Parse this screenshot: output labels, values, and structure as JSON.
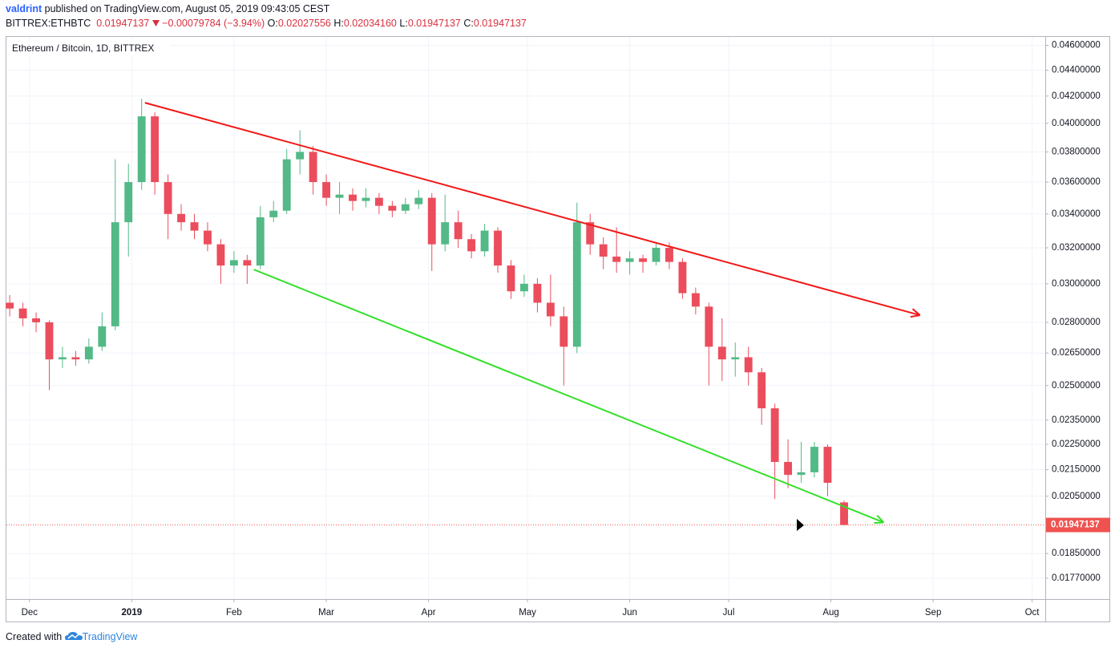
{
  "header": {
    "author": "valdrint",
    "published": "published on TradingView.com, August 05, 2019 09:43:05 CEST",
    "symbol": "BITTREX:ETHBTC",
    "last": "0.01947137",
    "change": "−0.00079784 (−3.94%)",
    "o_label": "O:",
    "o": "0.02027556",
    "h_label": "H:",
    "h": "0.02034160",
    "l_label": "L:",
    "l": "0.01947137",
    "c_label": "C:",
    "c": "0.01947137"
  },
  "footer": {
    "created": "Created with",
    "brand": "TradingView"
  },
  "chart_data": {
    "type": "candlestick",
    "title": "Ethereum / Bitcoin, 1D, BITTREX",
    "log_scale": true,
    "grid": true,
    "up_color": "#53b987",
    "down_color": "#eb4d5c",
    "xlim": [
      "2018-11-24",
      "2019-10-05"
    ],
    "xticks": [
      {
        "value": "2018-12-01",
        "label": "Dec"
      },
      {
        "value": "2019-01-01",
        "label": "2019"
      },
      {
        "value": "2019-02-01",
        "label": "Feb"
      },
      {
        "value": "2019-03-01",
        "label": "Mar"
      },
      {
        "value": "2019-04-01",
        "label": "Apr"
      },
      {
        "value": "2019-05-01",
        "label": "May"
      },
      {
        "value": "2019-06-01",
        "label": "Jun"
      },
      {
        "value": "2019-07-01",
        "label": "Jul"
      },
      {
        "value": "2019-08-01",
        "label": "Aug"
      },
      {
        "value": "2019-09-01",
        "label": "Sep"
      },
      {
        "value": "2019-10-01",
        "label": "Oct"
      }
    ],
    "ylim": [
      0.01705,
      0.0467
    ],
    "yticks": [
      {
        "value": 0.046,
        "label": "0.04600000"
      },
      {
        "value": 0.044,
        "label": "0.04400000"
      },
      {
        "value": 0.042,
        "label": "0.04200000"
      },
      {
        "value": 0.04,
        "label": "0.04000000"
      },
      {
        "value": 0.038,
        "label": "0.03800000"
      },
      {
        "value": 0.036,
        "label": "0.03600000"
      },
      {
        "value": 0.034,
        "label": "0.03400000"
      },
      {
        "value": 0.032,
        "label": "0.03200000"
      },
      {
        "value": 0.03,
        "label": "0.03000000"
      },
      {
        "value": 0.028,
        "label": "0.02800000"
      },
      {
        "value": 0.0265,
        "label": "0.02650000"
      },
      {
        "value": 0.025,
        "label": "0.02500000"
      },
      {
        "value": 0.0235,
        "label": "0.02350000"
      },
      {
        "value": 0.0225,
        "label": "0.02250000"
      },
      {
        "value": 0.0215,
        "label": "0.02150000"
      },
      {
        "value": 0.0205,
        "label": "0.02050000"
      },
      {
        "value": 0.0185,
        "label": "0.01850000"
      },
      {
        "value": 0.0177,
        "label": "0.01770000"
      }
    ],
    "price_line": {
      "value": 0.01947137,
      "label": "0.01947137",
      "color": "#ef5350"
    },
    "candles": {
      "x": [
        "2018-11-25",
        "2018-11-29",
        "2018-12-03",
        "2018-12-07",
        "2018-12-11",
        "2018-12-15",
        "2018-12-19",
        "2018-12-23",
        "2018-12-27",
        "2018-12-31",
        "2019-01-04",
        "2019-01-08",
        "2019-01-12",
        "2019-01-16",
        "2019-01-20",
        "2019-01-24",
        "2019-01-28",
        "2019-02-01",
        "2019-02-05",
        "2019-02-09",
        "2019-02-13",
        "2019-02-17",
        "2019-02-21",
        "2019-02-25",
        "2019-03-01",
        "2019-03-05",
        "2019-03-09",
        "2019-03-13",
        "2019-03-17",
        "2019-03-21",
        "2019-03-25",
        "2019-03-29",
        "2019-04-02",
        "2019-04-06",
        "2019-04-10",
        "2019-04-14",
        "2019-04-18",
        "2019-04-22",
        "2019-04-26",
        "2019-04-30",
        "2019-05-04",
        "2019-05-08",
        "2019-05-12",
        "2019-05-16",
        "2019-05-20",
        "2019-05-24",
        "2019-05-28",
        "2019-06-01",
        "2019-06-05",
        "2019-06-09",
        "2019-06-13",
        "2019-06-17",
        "2019-06-21",
        "2019-06-25",
        "2019-06-29",
        "2019-07-03",
        "2019-07-07",
        "2019-07-11",
        "2019-07-15",
        "2019-07-19",
        "2019-07-23",
        "2019-07-27",
        "2019-07-31",
        "2019-08-05"
      ],
      "open": [
        0.029,
        0.0287,
        0.0282,
        0.028,
        0.0262,
        0.0263,
        0.0262,
        0.0268,
        0.0278,
        0.0335,
        0.036,
        0.0405,
        0.036,
        0.034,
        0.0335,
        0.033,
        0.0322,
        0.031,
        0.0313,
        0.031,
        0.0338,
        0.0342,
        0.0375,
        0.038,
        0.036,
        0.035,
        0.0352,
        0.0348,
        0.035,
        0.0345,
        0.0342,
        0.0346,
        0.035,
        0.0322,
        0.0335,
        0.0325,
        0.0318,
        0.033,
        0.031,
        0.0296,
        0.03,
        0.029,
        0.0283,
        0.0268,
        0.0335,
        0.0322,
        0.0315,
        0.0312,
        0.0314,
        0.0312,
        0.032,
        0.0312,
        0.0295,
        0.0288,
        0.0268,
        0.0262,
        0.0263,
        0.0256,
        0.024,
        0.0218,
        0.0213,
        0.0214,
        0.0224,
        0.02027556
      ],
      "high": [
        0.0294,
        0.029,
        0.0285,
        0.0281,
        0.0268,
        0.0266,
        0.0272,
        0.0285,
        0.0375,
        0.0372,
        0.0418,
        0.0408,
        0.0365,
        0.0346,
        0.034,
        0.0335,
        0.0325,
        0.0318,
        0.0316,
        0.0345,
        0.0348,
        0.0382,
        0.0395,
        0.0384,
        0.0365,
        0.036,
        0.0356,
        0.0356,
        0.0353,
        0.0348,
        0.035,
        0.0355,
        0.0353,
        0.0352,
        0.0342,
        0.0328,
        0.0334,
        0.0332,
        0.0313,
        0.0305,
        0.0303,
        0.0305,
        0.0288,
        0.0347,
        0.034,
        0.0326,
        0.0332,
        0.0318,
        0.0316,
        0.0323,
        0.0323,
        0.0314,
        0.0298,
        0.029,
        0.0282,
        0.027,
        0.0268,
        0.0258,
        0.0242,
        0.0227,
        0.0226,
        0.0226,
        0.0225,
        0.0203416
      ],
      "low": [
        0.0283,
        0.0278,
        0.0275,
        0.0248,
        0.0258,
        0.0259,
        0.026,
        0.0266,
        0.0276,
        0.0315,
        0.0355,
        0.0352,
        0.0325,
        0.033,
        0.0325,
        0.0318,
        0.03,
        0.0306,
        0.03,
        0.0308,
        0.0335,
        0.034,
        0.0365,
        0.0352,
        0.0345,
        0.034,
        0.0342,
        0.0344,
        0.034,
        0.0338,
        0.034,
        0.0343,
        0.0307,
        0.0318,
        0.032,
        0.0314,
        0.0315,
        0.0306,
        0.0292,
        0.0293,
        0.0285,
        0.0278,
        0.025,
        0.0265,
        0.0316,
        0.0308,
        0.0306,
        0.0305,
        0.0306,
        0.031,
        0.0308,
        0.0292,
        0.0284,
        0.025,
        0.0252,
        0.0254,
        0.025,
        0.0233,
        0.0204,
        0.0208,
        0.021,
        0.0212,
        0.0205,
        0.01947137
      ],
      "close": [
        0.0287,
        0.0282,
        0.028,
        0.0262,
        0.0263,
        0.0262,
        0.0268,
        0.0278,
        0.0335,
        0.036,
        0.0405,
        0.036,
        0.034,
        0.0335,
        0.033,
        0.0322,
        0.031,
        0.0313,
        0.031,
        0.0338,
        0.0342,
        0.0375,
        0.038,
        0.036,
        0.035,
        0.0352,
        0.0348,
        0.035,
        0.0345,
        0.0342,
        0.0346,
        0.035,
        0.0322,
        0.0335,
        0.0325,
        0.0318,
        0.033,
        0.031,
        0.0296,
        0.03,
        0.029,
        0.0283,
        0.0268,
        0.0335,
        0.0322,
        0.0315,
        0.0312,
        0.0314,
        0.0312,
        0.032,
        0.0312,
        0.0295,
        0.0288,
        0.0268,
        0.0262,
        0.0263,
        0.0256,
        0.024,
        0.0218,
        0.0213,
        0.0214,
        0.0224,
        0.021,
        0.01947137
      ]
    },
    "trendlines": [
      {
        "color": "#f21818",
        "x": [
          "2019-01-05",
          "2019-08-28"
        ],
        "y": [
          0.0415,
          0.02836
        ]
      },
      {
        "color": "#34e02a",
        "x": [
          "2019-02-07",
          "2019-08-17"
        ],
        "y": [
          0.03078,
          0.01956
        ]
      }
    ]
  }
}
